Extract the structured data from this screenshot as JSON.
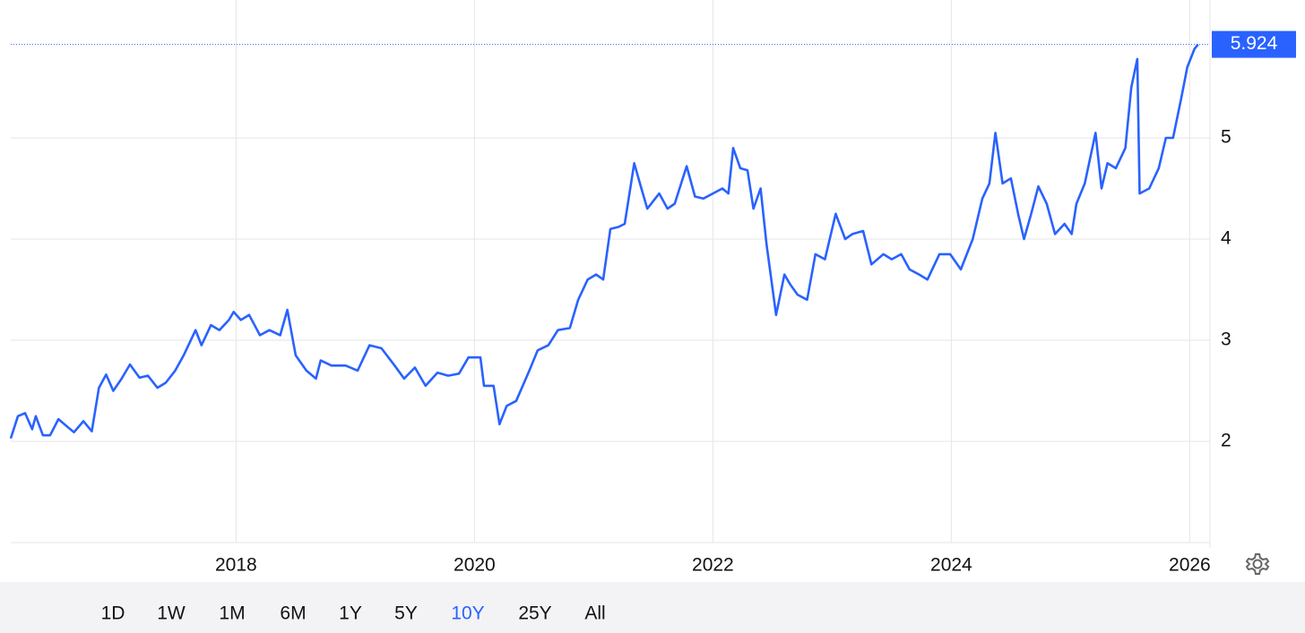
{
  "chart_data": {
    "type": "line",
    "color": "#2962ff",
    "x": [
      2016.11,
      2016.17,
      2016.23,
      2016.29,
      2016.32,
      2016.38,
      2016.44,
      2016.51,
      2016.59,
      2016.64,
      2016.72,
      2016.79,
      2016.85,
      2016.91,
      2016.97,
      2017.04,
      2017.11,
      2017.19,
      2017.26,
      2017.34,
      2017.41,
      2017.49,
      2017.56,
      2017.66,
      2017.71,
      2017.79,
      2017.86,
      2017.94,
      2017.98,
      2018.04,
      2018.11,
      2018.2,
      2018.28,
      2018.37,
      2018.43,
      2018.5,
      2018.59,
      2018.67,
      2018.71,
      2018.8,
      2018.92,
      2019.02,
      2019.12,
      2019.22,
      2019.33,
      2019.41,
      2019.5,
      2019.59,
      2019.69,
      2019.78,
      2019.87,
      2019.95,
      2020.05,
      2020.08,
      2020.16,
      2020.21,
      2020.27,
      2020.35,
      2020.46,
      2020.53,
      2020.62,
      2020.7,
      2020.8,
      2020.87,
      2020.95,
      2021.02,
      2021.08,
      2021.14,
      2021.21,
      2021.26,
      2021.34,
      2021.4,
      2021.45,
      2021.55,
      2021.62,
      2021.68,
      2021.78,
      2021.85,
      2021.92,
      2022.0,
      2022.08,
      2022.13,
      2022.17,
      2022.23,
      2022.29,
      2022.34,
      2022.4,
      2022.45,
      2022.53,
      2022.6,
      2022.65,
      2022.71,
      2022.79,
      2022.86,
      2022.94,
      2023.03,
      2023.11,
      2023.17,
      2023.26,
      2023.33,
      2023.43,
      2023.5,
      2023.58,
      2023.65,
      2023.73,
      2023.8,
      2023.9,
      2023.99,
      2024.08,
      2024.18,
      2024.26,
      2024.32,
      2024.37,
      2024.43,
      2024.5,
      2024.56,
      2024.61,
      2024.67,
      2024.73,
      2024.8,
      2024.87,
      2024.95,
      2025.01,
      2025.05,
      2025.12,
      2025.21,
      2025.26,
      2025.31,
      2025.38,
      2025.46,
      2025.51,
      2025.56,
      2025.58,
      2025.66,
      2025.74,
      2025.8,
      2025.86,
      2025.93,
      2025.98,
      2026.04,
      2026.07
    ],
    "values": [
      2.03,
      2.25,
      2.28,
      2.12,
      2.25,
      2.06,
      2.06,
      2.22,
      2.14,
      2.09,
      2.2,
      2.1,
      2.53,
      2.66,
      2.5,
      2.62,
      2.76,
      2.63,
      2.65,
      2.53,
      2.58,
      2.7,
      2.85,
      3.1,
      2.95,
      3.15,
      3.1,
      3.2,
      3.28,
      3.2,
      3.25,
      3.05,
      3.1,
      3.05,
      3.3,
      2.85,
      2.7,
      2.62,
      2.8,
      2.75,
      2.75,
      2.7,
      2.95,
      2.92,
      2.75,
      2.62,
      2.73,
      2.55,
      2.68,
      2.65,
      2.67,
      2.83,
      2.83,
      2.55,
      2.55,
      2.17,
      2.35,
      2.4,
      2.7,
      2.9,
      2.95,
      3.1,
      3.12,
      3.4,
      3.6,
      3.65,
      3.6,
      4.1,
      4.12,
      4.15,
      4.75,
      4.5,
      4.3,
      4.45,
      4.3,
      4.35,
      4.72,
      4.42,
      4.4,
      4.45,
      4.5,
      4.45,
      4.9,
      4.7,
      4.68,
      4.3,
      4.5,
      3.95,
      3.25,
      3.65,
      3.55,
      3.45,
      3.4,
      3.85,
      3.8,
      4.25,
      4.0,
      4.05,
      4.08,
      3.75,
      3.85,
      3.8,
      3.85,
      3.7,
      3.65,
      3.6,
      3.85,
      3.85,
      3.7,
      4.0,
      4.4,
      4.55,
      5.05,
      4.55,
      4.6,
      4.25,
      4.0,
      4.25,
      4.52,
      4.35,
      4.05,
      4.15,
      4.05,
      4.35,
      4.55,
      5.05,
      4.5,
      4.75,
      4.7,
      4.9,
      5.5,
      5.78,
      4.45,
      4.5,
      4.7,
      5.0,
      5.0,
      5.4,
      5.7,
      5.88,
      5.924
    ],
    "xlim": [
      2016.11,
      2026.17
    ],
    "xticks": [
      2018,
      2020,
      2022,
      2024,
      2026
    ],
    "ylim": [
      1,
      6
    ],
    "yticks": [
      2,
      3,
      4,
      5
    ],
    "grid": true,
    "range_buttons": [
      "1D",
      "1W",
      "1M",
      "6M",
      "1Y",
      "5Y",
      "10Y",
      "25Y",
      "All"
    ],
    "active_range": 6
  }
}
